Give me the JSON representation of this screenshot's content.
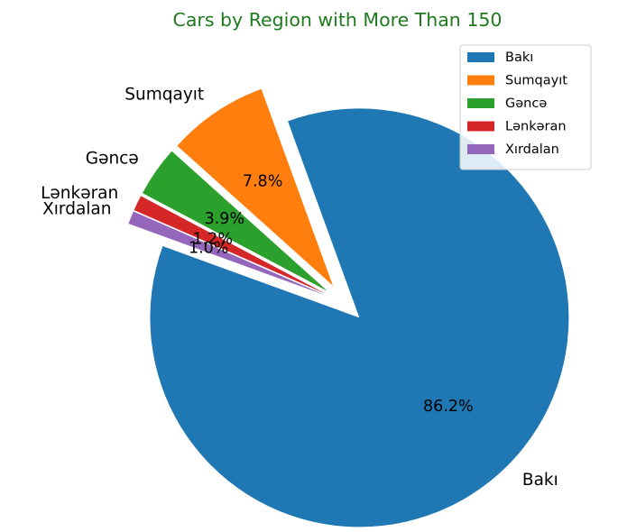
{
  "chart_data": {
    "type": "pie",
    "title": "Cars by Region with More Than 150",
    "title_color": "#1f7a1f",
    "start_angle_deg": 160,
    "explode": 0.1,
    "legend_position": "top-right",
    "slices": [
      {
        "label": "Bakı",
        "value": 86.2,
        "pct_label": "86.2%",
        "color": "#1f77b4"
      },
      {
        "label": "Sumqayıt",
        "value": 7.8,
        "pct_label": "7.8%",
        "color": "#ff7f0e"
      },
      {
        "label": "Gəncə",
        "value": 3.9,
        "pct_label": "3.9%",
        "color": "#2ca02c"
      },
      {
        "label": "Lənkəran",
        "value": 1.2,
        "pct_label": "1.2%",
        "color": "#d62728"
      },
      {
        "label": "Xırdalan",
        "value": 1.0,
        "pct_label": "1.0%",
        "color": "#9467bd"
      }
    ]
  }
}
